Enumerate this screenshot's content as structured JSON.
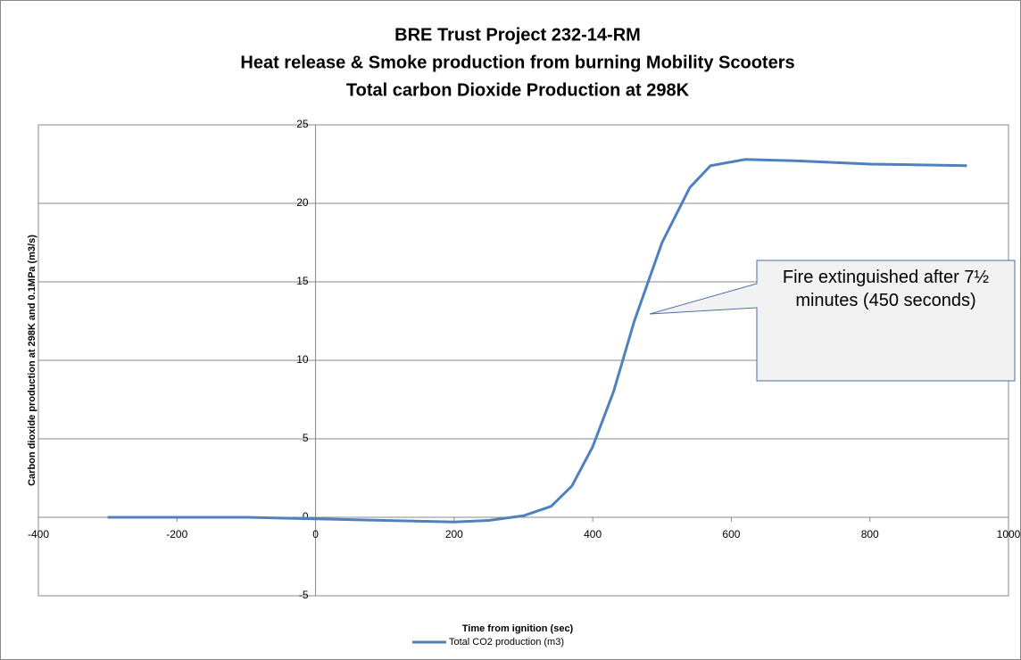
{
  "chart_data": {
    "type": "line",
    "title": [
      "BRE Trust Project 232-14-RM",
      "Heat release & Smoke production from burning Mobility Scooters",
      "Total carbon Dioxide Production at 298K"
    ],
    "xlabel": "Time from ignition (sec)",
    "ylabel": "Carbon dioxide production at 298K and 0.1MPa (m3/s)",
    "annotation": "Fire extinguished after 7½ minutes (450 seconds)",
    "xlim": [
      -400,
      1000
    ],
    "xticks": [
      -400,
      -200,
      0,
      200,
      400,
      600,
      800,
      1000
    ],
    "ylim": [
      -5,
      25
    ],
    "yticks": [
      -5,
      0,
      5,
      10,
      15,
      20,
      25
    ],
    "grid": true,
    "legend": "bottom",
    "x": [
      -300,
      -200,
      -100,
      0,
      100,
      200,
      250,
      300,
      340,
      370,
      400,
      430,
      460,
      500,
      540,
      570,
      620,
      700,
      800,
      940
    ],
    "series": [
      {
        "name": "Total CO2 production (m3)",
        "color": "#4f81bd",
        "values": [
          0,
          0,
          0,
          -0.1,
          -0.2,
          -0.3,
          -0.2,
          0.1,
          0.7,
          2,
          4.5,
          8,
          12.5,
          17.5,
          21,
          22.4,
          22.8,
          22.7,
          22.5,
          22.4
        ]
      }
    ]
  }
}
